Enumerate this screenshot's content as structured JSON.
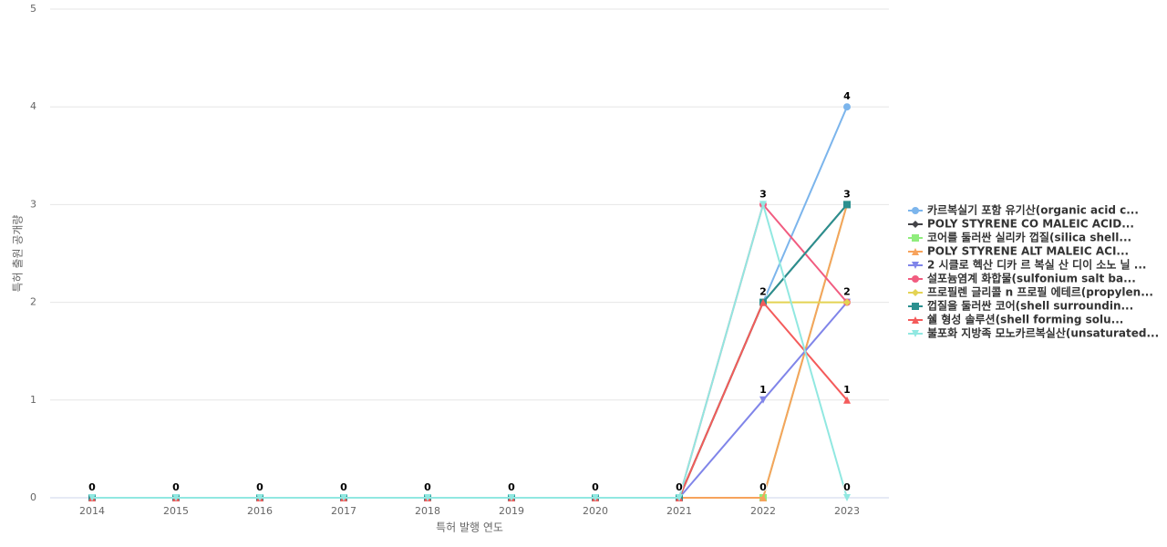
{
  "chart_data": {
    "type": "line",
    "x_label": "특허 발행 연도",
    "y_label": "특허 출원 공개량",
    "categories": [
      "2014",
      "2015",
      "2016",
      "2017",
      "2018",
      "2019",
      "2020",
      "2021",
      "2022",
      "2023"
    ],
    "ylim": [
      0,
      5
    ],
    "yticks": [
      0,
      1,
      2,
      3,
      4,
      5
    ],
    "grid": true,
    "legend": "right",
    "series": [
      {
        "name": "카르복실기 포함 유기산(organic acid c...",
        "color": "#7cb5ec",
        "marker": "circle",
        "values": [
          0,
          0,
          0,
          0,
          0,
          0,
          0,
          0,
          2,
          4
        ]
      },
      {
        "name": "POLY STYRENE CO MALEIC ACID...",
        "color": "#434348",
        "marker": "diamond",
        "values": [
          0,
          0,
          0,
          0,
          0,
          0,
          0,
          0,
          2,
          3
        ]
      },
      {
        "name": "코어를 둘러싼 실리카 껍질(silica shell...",
        "color": "#90ed7d",
        "marker": "square",
        "values": [
          0,
          0,
          0,
          0,
          0,
          0,
          0,
          0,
          0,
          3
        ]
      },
      {
        "name": "POLY STYRENE ALT MALEIC ACI...",
        "color": "#f7a35c",
        "marker": "triangle",
        "values": [
          0,
          0,
          0,
          0,
          0,
          0,
          0,
          0,
          0,
          3
        ]
      },
      {
        "name": "2 시클로 헥산 디카 르 복실 산 디이 소노 닐 ...",
        "color": "#8085e9",
        "marker": "triangle-down",
        "values": [
          0,
          0,
          0,
          0,
          0,
          0,
          0,
          0,
          1,
          2
        ]
      },
      {
        "name": "설포늄염계 화합물(sulfonium salt ba...",
        "color": "#f15c80",
        "marker": "circle",
        "values": [
          0,
          0,
          0,
          0,
          0,
          0,
          0,
          0,
          3,
          2
        ]
      },
      {
        "name": "프로필렌 글리콜 n 프로필 에테르(propylen...",
        "color": "#e4d354",
        "marker": "diamond",
        "values": [
          0,
          0,
          0,
          0,
          0,
          0,
          0,
          0,
          2,
          2
        ]
      },
      {
        "name": "껍질을 둘러싼 코어(shell surroundin...",
        "color": "#2b908f",
        "marker": "square",
        "values": [
          0,
          0,
          0,
          0,
          0,
          0,
          0,
          0,
          2,
          3
        ]
      },
      {
        "name": "쉘 형성 솔루션(shell forming solu...",
        "color": "#f45b5b",
        "marker": "triangle",
        "values": [
          0,
          0,
          0,
          0,
          0,
          0,
          0,
          0,
          2,
          1
        ]
      },
      {
        "name": "불포화 지방족 모노카르복실산(unsaturated...",
        "color": "#91e8e1",
        "marker": "triangle-down",
        "values": [
          0,
          0,
          0,
          0,
          0,
          0,
          0,
          0,
          3,
          0
        ]
      }
    ]
  }
}
